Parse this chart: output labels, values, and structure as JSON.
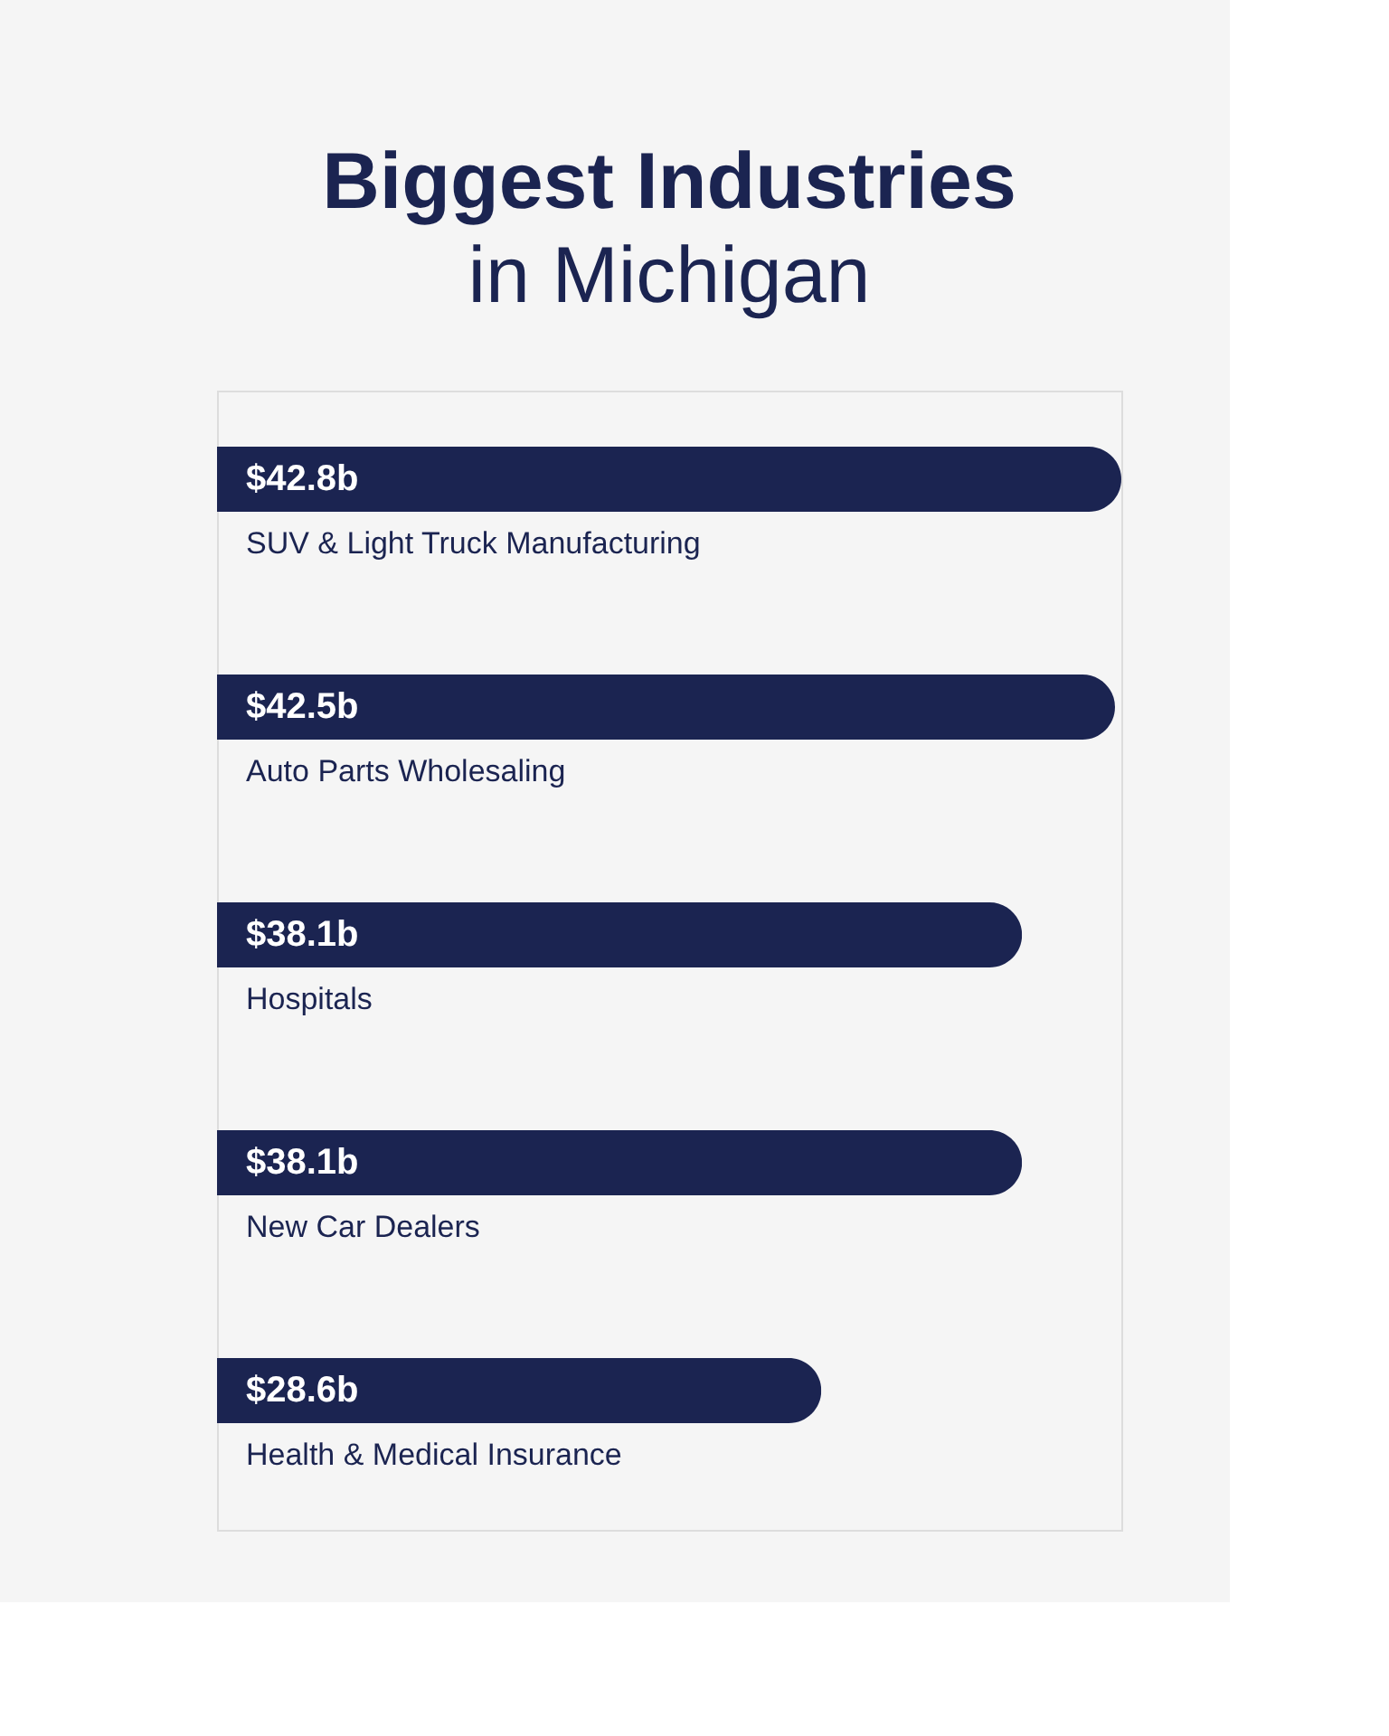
{
  "chart_data": {
    "type": "bar",
    "orientation": "horizontal",
    "title": "Biggest Industries",
    "subtitle": "in Michigan",
    "categories": [
      "SUV & Light Truck Manufacturing",
      "Auto Parts Wholesaling",
      "Hospitals",
      "New Car Dealers",
      "Health & Medical Insurance"
    ],
    "values": [
      42.8,
      42.5,
      38.1,
      38.1,
      28.6
    ],
    "value_labels": [
      "$42.8b",
      "$42.5b",
      "$38.1b",
      "$38.1b",
      "$28.6b"
    ],
    "color": "#1b2451"
  }
}
